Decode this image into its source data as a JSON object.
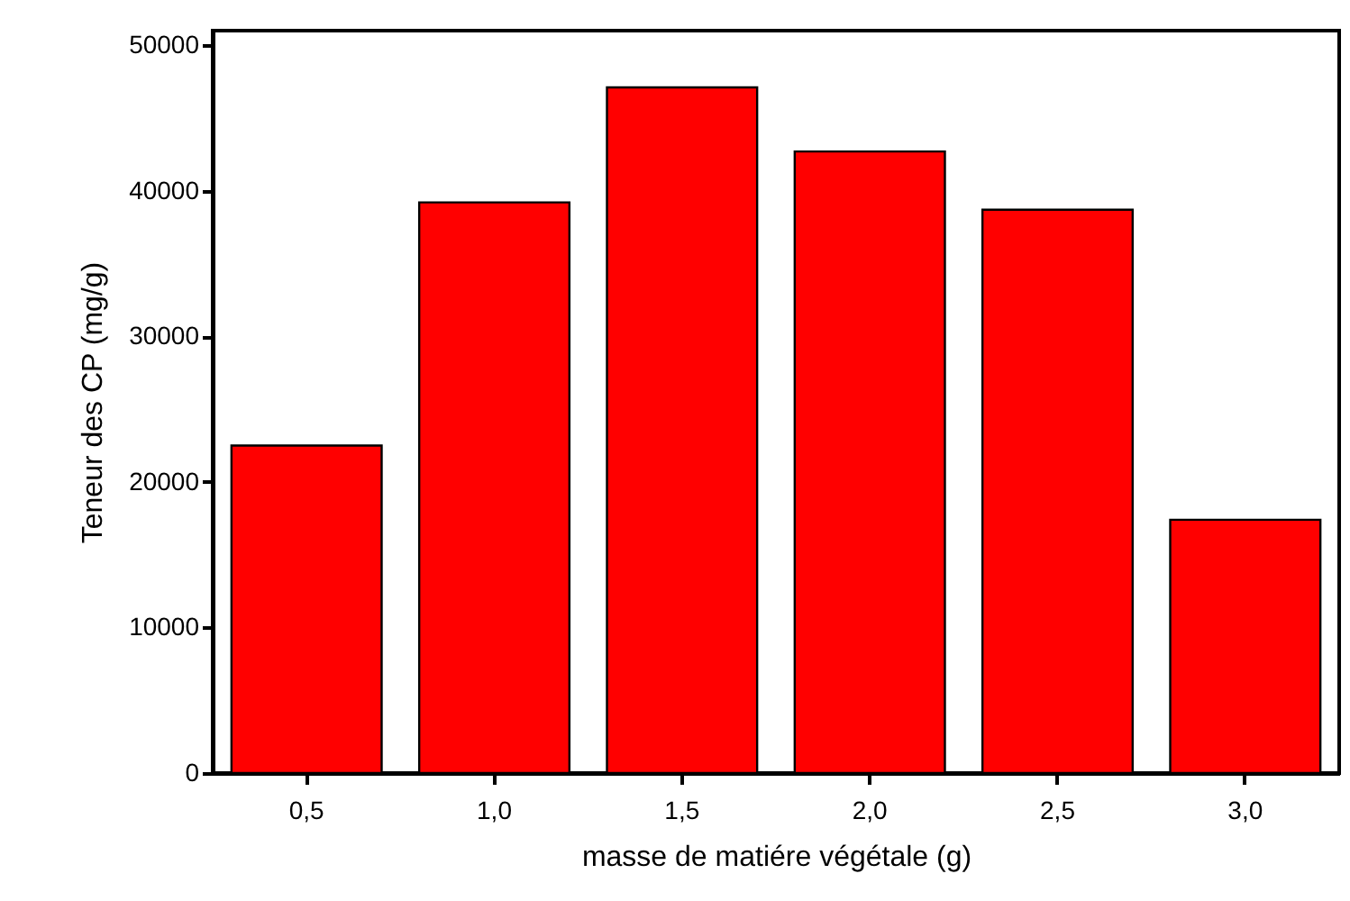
{
  "chart_data": {
    "type": "bar",
    "xlabel": "masse de matiére végétale (g)",
    "ylabel": "Teneur des CP (mg/g)",
    "categories": [
      "0,5",
      "1,0",
      "1,5",
      "2,0",
      "2,5",
      "3,0"
    ],
    "values": [
      22500,
      39200,
      47100,
      42700,
      38700,
      17400
    ],
    "color": "#ff0000",
    "ylim": [
      0,
      51000
    ],
    "yticks": [
      0,
      10000,
      20000,
      30000,
      40000,
      50000
    ],
    "grid": false
  }
}
